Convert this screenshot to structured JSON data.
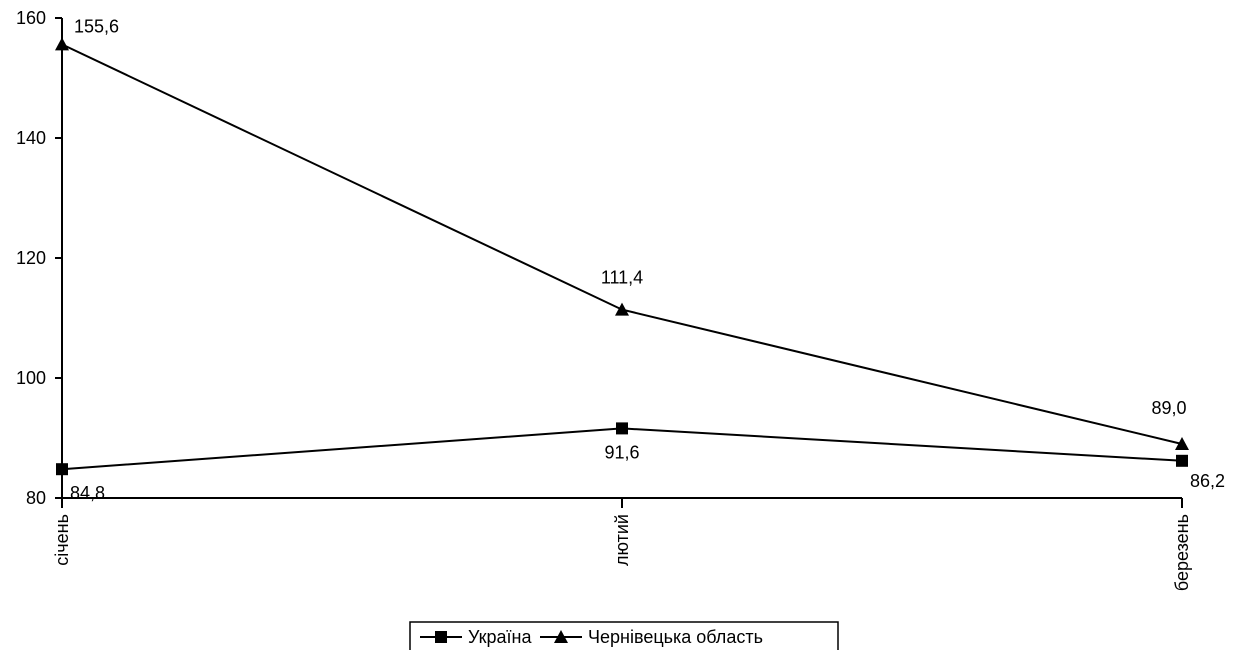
{
  "chart_data": {
    "type": "line",
    "title": "",
    "xlabel": "",
    "ylabel": "",
    "categories": [
      "січень",
      "лютий",
      "березень"
    ],
    "ylim": [
      80,
      160
    ],
    "yticks": [
      "80",
      "100",
      "120",
      "140",
      "160"
    ],
    "grid": false,
    "legend_position": "bottom",
    "series": [
      {
        "name": "Україна",
        "marker": "square",
        "values": [
          84.8,
          91.6,
          86.2
        ],
        "labels": [
          "84,8",
          "91,6",
          "86,2"
        ],
        "color": "#000000"
      },
      {
        "name": "Чернівецька область",
        "marker": "triangle",
        "values": [
          155.6,
          111.4,
          89.0
        ],
        "labels": [
          "155,6",
          "111,4",
          "89,0"
        ],
        "color": "#000000"
      }
    ]
  }
}
